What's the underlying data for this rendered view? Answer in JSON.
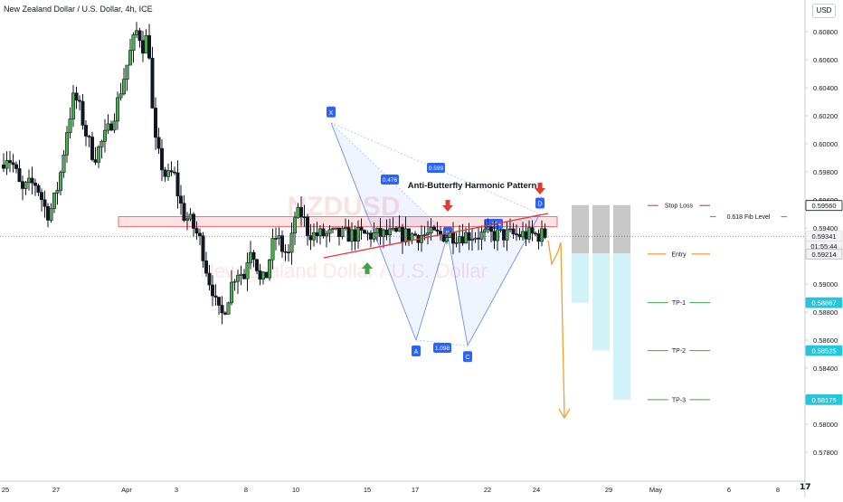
{
  "header": {
    "title": "New Zealand Dollar / U.S. Dollar, 4h, ICE",
    "currency_button": "USD"
  },
  "watermark": {
    "symbol": "NZDUSD",
    "name": "New Zealand Dollar / U.S. Dollar"
  },
  "chart_data": {
    "type": "candlestick",
    "symbol": "NZDUSD",
    "timeframe": "4h",
    "title": "New Zealand Dollar / U.S. Dollar, 4h, ICE",
    "x_tick_labels": [
      "25",
      "27",
      "Apr",
      "3",
      "8",
      "10",
      "15",
      "17",
      "22",
      "24",
      "29",
      "May",
      "6",
      "8"
    ],
    "y_ticks": [
      0.578,
      0.58,
      0.582,
      0.584,
      0.586,
      0.588,
      0.59,
      0.594,
      0.596,
      0.598,
      0.6,
      0.602,
      0.604,
      0.606,
      0.608
    ],
    "ylim": [
      0.5766,
      0.6096
    ],
    "price_labels": [
      {
        "text": "0.59560",
        "kind": "stop"
      },
      {
        "text": "0.59341",
        "kind": "last"
      },
      {
        "text": "01:55:44",
        "kind": "timer"
      },
      {
        "text": "0.59214",
        "kind": "entry"
      },
      {
        "text": "0.58867",
        "kind": "target"
      },
      {
        "text": "0.58525",
        "kind": "target"
      },
      {
        "text": "0.58175",
        "kind": "target"
      }
    ],
    "pattern": {
      "name": "Anti-Butterfly Harmonic Pattern",
      "points": [
        {
          "label": "X",
          "value": 0.6015
        },
        {
          "label": "A",
          "value": 0.586
        },
        {
          "label": "B",
          "value": 0.5935
        },
        {
          "label": "C",
          "value": 0.5856
        },
        {
          "label": "D",
          "value": 0.595
        }
      ],
      "ratios": [
        "0.476",
        "0.599",
        "1.098",
        "1.254"
      ]
    },
    "resistance_zone": [
      0.5941,
      0.5948
    ],
    "levels": [
      {
        "label": "Stop Loss",
        "value": 0.5956
      },
      {
        "label": "0.618 Fib Level",
        "value": 0.5948
      },
      {
        "label": "Entry",
        "value": 0.59214
      },
      {
        "label": "TP-1",
        "value": 0.58867
      },
      {
        "label": "TP-2",
        "value": 0.58525
      },
      {
        "label": "TP-3",
        "value": 0.58175
      }
    ],
    "colors": {
      "bull": "#26a69a",
      "bear": "#ef5350",
      "candle_bull": "#4caf50",
      "candle_bear": "#131722",
      "pattern": "#2962ff",
      "target": "#26c6da",
      "stop": "#d32f2f",
      "entry": "#f57c00"
    },
    "grid": false
  }
}
